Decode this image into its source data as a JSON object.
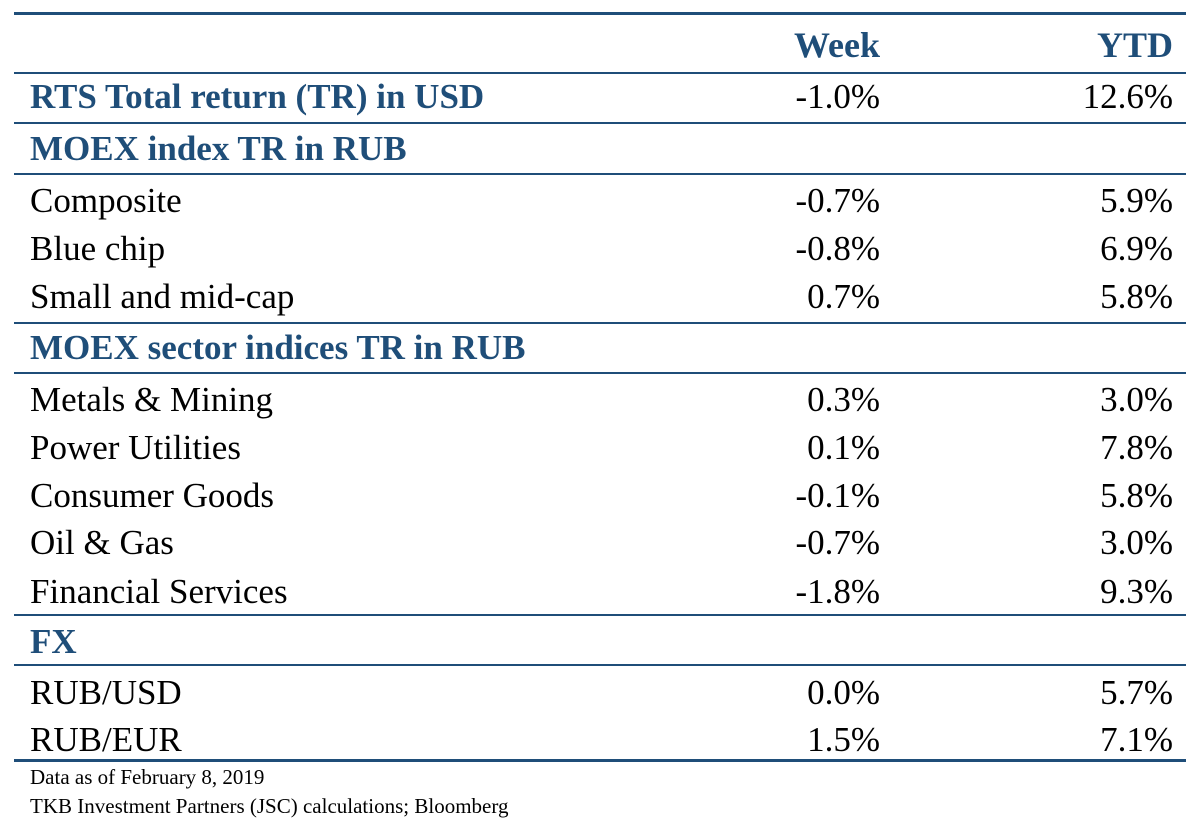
{
  "chart_data": {
    "type": "table",
    "columns": [
      "",
      "Week",
      "YTD"
    ],
    "header_row": {
      "label": "RTS Total return (TR) in USD",
      "week": "-1.0%",
      "ytd": "12.6%"
    },
    "sections": [
      {
        "title": "MOEX index TR in RUB",
        "rows": [
          {
            "label": "Composite",
            "week": "-0.7%",
            "ytd": "5.9%"
          },
          {
            "label": "Blue chip",
            "week": "-0.8%",
            "ytd": "6.9%"
          },
          {
            "label": "Small and mid-cap",
            "week": "0.7%",
            "ytd": "5.8%"
          }
        ]
      },
      {
        "title": "MOEX sector indices TR in RUB",
        "rows": [
          {
            "label": "Metals & Mining",
            "week": "0.3%",
            "ytd": "3.0%"
          },
          {
            "label": "Power Utilities",
            "week": "0.1%",
            "ytd": "7.8%"
          },
          {
            "label": "Consumer Goods",
            "week": "-0.1%",
            "ytd": "5.8%"
          },
          {
            "label": "Oil & Gas",
            "week": "-0.7%",
            "ytd": "3.0%"
          },
          {
            "label": "Financial Services",
            "week": "-1.8%",
            "ytd": "9.3%"
          }
        ]
      },
      {
        "title": "FX",
        "rows": [
          {
            "label": "RUB/USD",
            "week": "0.0%",
            "ytd": "5.7%"
          },
          {
            "label": "RUB/EUR",
            "week": "1.5%",
            "ytd": "7.1%"
          }
        ]
      }
    ],
    "notes": [
      "Data as of February 8, 2019",
      "TKB Investment Partners (JSC) calculations; Bloomberg"
    ]
  },
  "colors": {
    "accent": "#1f4e79"
  }
}
